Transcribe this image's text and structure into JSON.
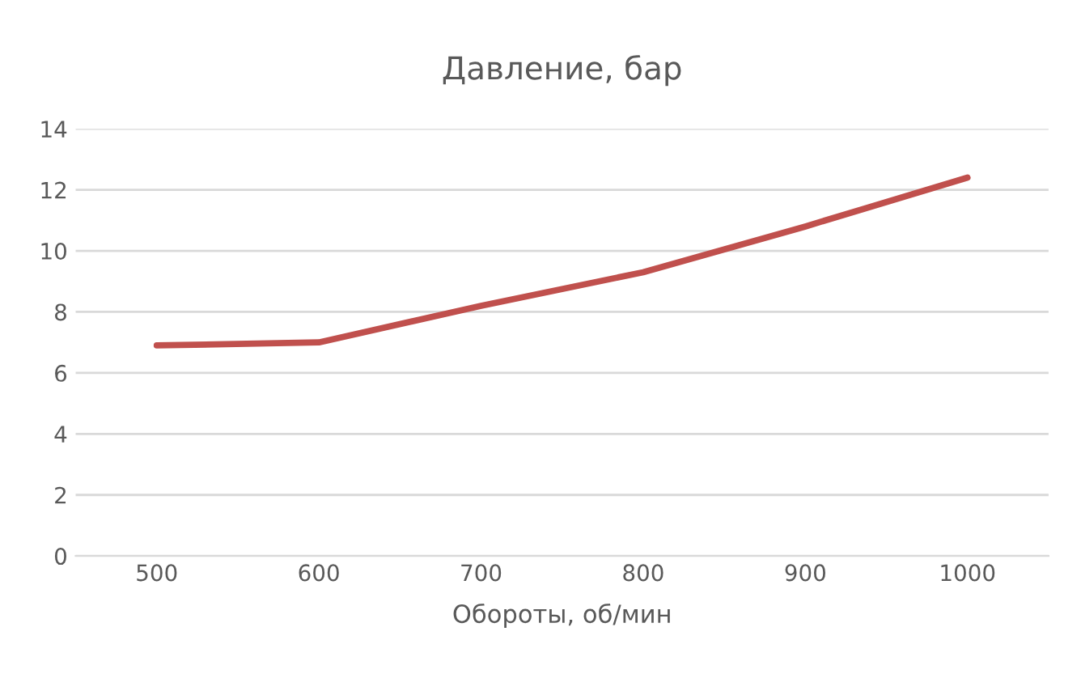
{
  "chart_data": {
    "type": "line",
    "title": "Давление, бар",
    "xlabel": "Обороты, об/мин",
    "categories": [
      "500",
      "600",
      "700",
      "800",
      "900",
      "1000"
    ],
    "series": [
      {
        "color": "#c0504d",
        "values": [
          6.9,
          7.0,
          8.2,
          9.3,
          10.8,
          12.4
        ]
      }
    ],
    "ylim": [
      0,
      14
    ],
    "yticks": [
      0,
      2,
      4,
      6,
      8,
      10,
      12,
      14
    ],
    "grid": "y",
    "marker": "none",
    "line_style": "solid"
  }
}
